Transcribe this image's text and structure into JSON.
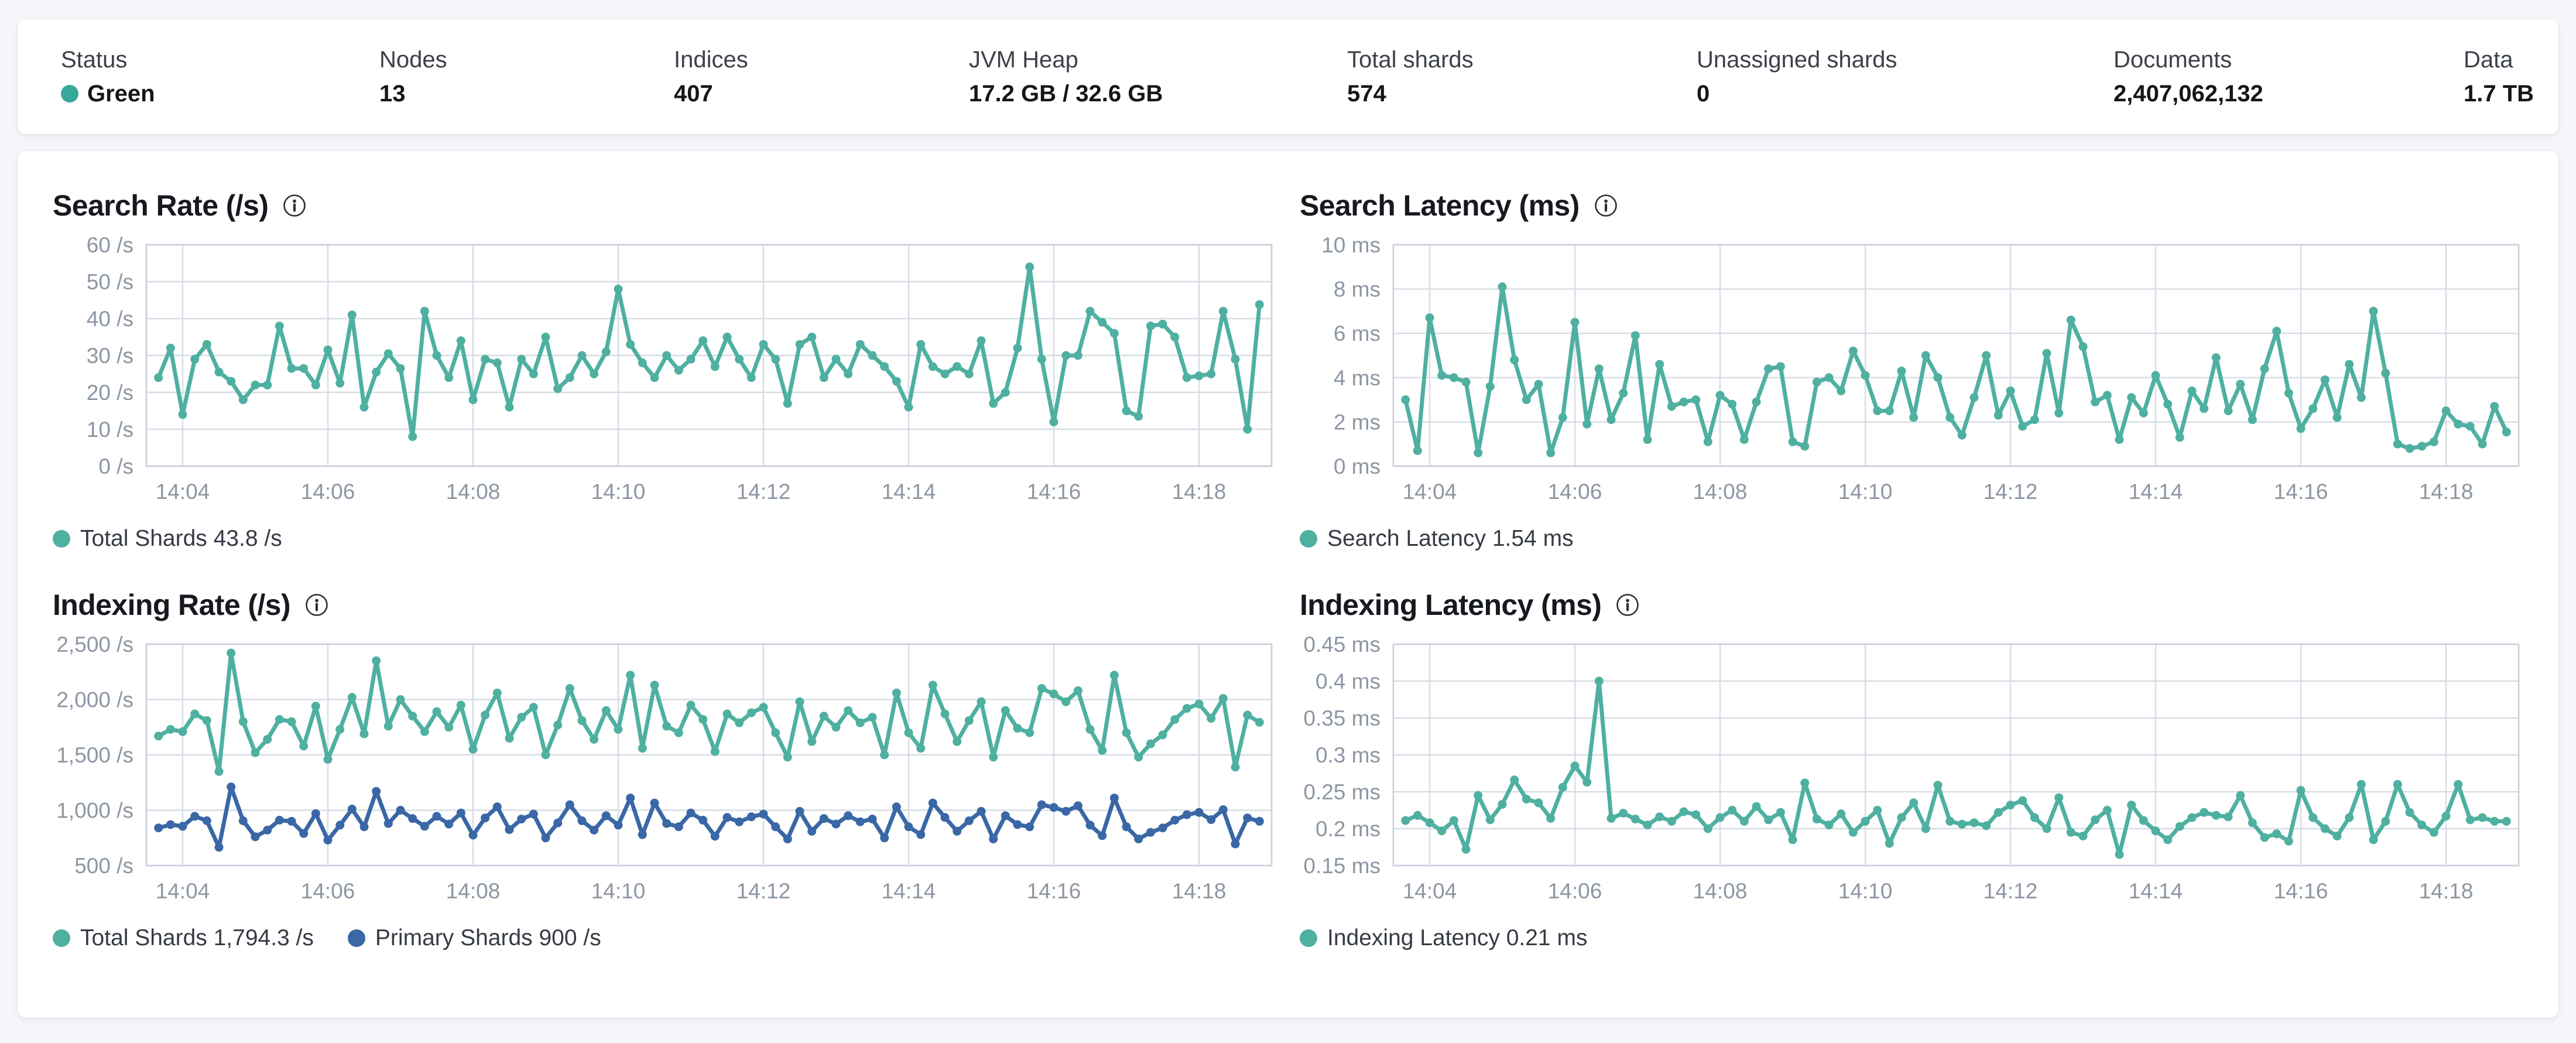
{
  "colors": {
    "teal": "#4FB0A1",
    "blue": "#3A67A5",
    "status_green": "#38A79B",
    "grid": "#d7dde6",
    "plot_border": "#c9d0db",
    "axis_text": "#8c96a3"
  },
  "summary_bar": {
    "stats": [
      {
        "label": "Status",
        "value": "Green"
      },
      {
        "label": "Nodes",
        "value": "13"
      },
      {
        "label": "Indices",
        "value": "407"
      },
      {
        "label": "JVM Heap",
        "value": "17.2 GB / 32.6 GB"
      },
      {
        "label": "Total shards",
        "value": "574"
      },
      {
        "label": "Unassigned shards",
        "value": "0"
      },
      {
        "label": "Documents",
        "value": "2,407,062,132"
      },
      {
        "label": "Data",
        "value": "1.7 TB"
      }
    ]
  },
  "chart_data": [
    {
      "type": "line",
      "title": "Search Rate (/s)",
      "ylim": [
        0,
        60
      ],
      "y_ticks": [
        {
          "v": 0,
          "label": "0 /s"
        },
        {
          "v": 10,
          "label": "10 /s"
        },
        {
          "v": 20,
          "label": "20 /s"
        },
        {
          "v": 30,
          "label": "30 /s"
        },
        {
          "v": 40,
          "label": "40 /s"
        },
        {
          "v": 50,
          "label": "50 /s"
        },
        {
          "v": 60,
          "label": "60 /s"
        }
      ],
      "x_tick_labels": [
        "14:04",
        "14:06",
        "14:08",
        "14:10",
        "14:12",
        "14:14",
        "14:16",
        "14:18"
      ],
      "x_tick_indices": [
        2,
        14,
        26,
        38,
        50,
        62,
        74,
        86
      ],
      "legend": [
        {
          "label": "Total Shards 43.8 /s",
          "color": "teal"
        }
      ],
      "series": [
        {
          "name": "Total Shards",
          "color": "teal",
          "values": [
            24,
            32,
            14,
            29,
            33,
            25.5,
            23,
            18,
            22,
            22,
            38,
            26.5,
            26.5,
            22,
            31.5,
            22.5,
            41,
            16,
            25.5,
            30.5,
            26.5,
            8,
            42,
            30,
            24,
            34,
            18,
            29,
            28,
            16,
            29,
            25,
            35,
            21,
            24,
            30,
            25,
            31,
            48,
            33,
            28,
            24,
            30,
            26,
            29,
            34,
            27,
            35,
            29,
            24,
            33,
            29,
            17,
            33,
            35,
            24,
            29,
            25,
            33,
            30,
            27,
            23,
            16,
            33,
            27,
            25,
            27,
            25,
            34,
            17,
            20,
            32,
            54,
            29,
            12,
            30,
            30,
            42,
            39,
            36,
            15,
            13.5,
            38,
            38.5,
            35,
            24,
            24.5,
            25,
            42,
            29,
            10,
            43.8
          ]
        }
      ]
    },
    {
      "type": "line",
      "title": "Search Latency (ms)",
      "ylim": [
        0,
        10
      ],
      "y_ticks": [
        {
          "v": 0,
          "label": "0 ms"
        },
        {
          "v": 2,
          "label": "2 ms"
        },
        {
          "v": 4,
          "label": "4 ms"
        },
        {
          "v": 6,
          "label": "6 ms"
        },
        {
          "v": 8,
          "label": "8 ms"
        },
        {
          "v": 10,
          "label": "10 ms"
        }
      ],
      "x_tick_labels": [
        "14:04",
        "14:06",
        "14:08",
        "14:10",
        "14:12",
        "14:14",
        "14:16",
        "14:18"
      ],
      "x_tick_indices": [
        2,
        14,
        26,
        38,
        50,
        62,
        74,
        86
      ],
      "legend": [
        {
          "label": "Search Latency 1.54 ms",
          "color": "teal"
        }
      ],
      "series": [
        {
          "name": "Search Latency",
          "color": "teal",
          "values": [
            3,
            0.7,
            6.7,
            4.1,
            4,
            3.8,
            0.6,
            3.6,
            8.1,
            4.8,
            3,
            3.7,
            0.6,
            2.2,
            6.5,
            1.9,
            4.4,
            2.1,
            3.3,
            5.9,
            1.2,
            4.6,
            2.7,
            2.9,
            3,
            1.1,
            3.2,
            2.8,
            1.2,
            2.9,
            4.4,
            4.5,
            1.1,
            0.9,
            3.8,
            4,
            3.4,
            5.2,
            4.1,
            2.5,
            2.5,
            4.3,
            2.2,
            5,
            4,
            2.2,
            1.4,
            3.1,
            5,
            2.3,
            3.4,
            1.8,
            2.1,
            5.1,
            2.4,
            6.6,
            5.4,
            2.9,
            3.2,
            1.2,
            3.1,
            2.4,
            4.1,
            2.8,
            1.3,
            3.4,
            2.6,
            4.9,
            2.5,
            3.7,
            2.1,
            4.4,
            6.1,
            3.3,
            1.7,
            2.6,
            3.9,
            2.2,
            4.6,
            3.1,
            7,
            4.2,
            1,
            0.8,
            0.9,
            1.1,
            2.5,
            1.9,
            1.8,
            1,
            2.7,
            1.54
          ]
        }
      ]
    },
    {
      "type": "line",
      "title": "Indexing Rate (/s)",
      "ylim": [
        500,
        2500
      ],
      "y_ticks": [
        {
          "v": 500,
          "label": "500 /s"
        },
        {
          "v": 1000,
          "label": "1,000 /s"
        },
        {
          "v": 1500,
          "label": "1,500 /s"
        },
        {
          "v": 2000,
          "label": "2,000 /s"
        },
        {
          "v": 2500,
          "label": "2,500 /s"
        }
      ],
      "x_tick_labels": [
        "14:04",
        "14:06",
        "14:08",
        "14:10",
        "14:12",
        "14:14",
        "14:16",
        "14:18"
      ],
      "x_tick_indices": [
        2,
        14,
        26,
        38,
        50,
        62,
        74,
        86
      ],
      "legend": [
        {
          "label": "Total Shards 1,794.3 /s",
          "color": "teal"
        },
        {
          "label": "Primary Shards 900 /s",
          "color": "blue"
        }
      ],
      "series": [
        {
          "name": "Total Shards",
          "color": "teal",
          "values": [
            1670,
            1730,
            1710,
            1870,
            1810,
            1350,
            2420,
            1800,
            1520,
            1640,
            1820,
            1800,
            1580,
            1940,
            1460,
            1730,
            2020,
            1690,
            2350,
            1760,
            2000,
            1850,
            1710,
            1890,
            1750,
            1950,
            1550,
            1860,
            2060,
            1650,
            1840,
            1930,
            1500,
            1770,
            2100,
            1810,
            1640,
            1900,
            1730,
            2220,
            1560,
            2130,
            1760,
            1700,
            1950,
            1820,
            1530,
            1870,
            1790,
            1880,
            1930,
            1700,
            1480,
            1980,
            1620,
            1850,
            1750,
            1900,
            1790,
            1840,
            1500,
            2060,
            1700,
            1560,
            2130,
            1870,
            1620,
            1810,
            1980,
            1480,
            1900,
            1740,
            1700,
            2100,
            2050,
            1980,
            2080,
            1730,
            1540,
            2220,
            1700,
            1480,
            1600,
            1680,
            1820,
            1920,
            1960,
            1830,
            2010,
            1390,
            1860,
            1794.3
          ]
        },
        {
          "name": "Primary Shards",
          "color": "blue",
          "values": [
            840,
            870,
            855,
            945,
            905,
            665,
            1210,
            905,
            760,
            820,
            910,
            900,
            790,
            970,
            730,
            865,
            1010,
            850,
            1170,
            880,
            1000,
            925,
            855,
            945,
            875,
            975,
            775,
            930,
            1030,
            825,
            920,
            965,
            750,
            885,
            1050,
            905,
            820,
            950,
            865,
            1110,
            780,
            1065,
            880,
            850,
            975,
            910,
            765,
            935,
            895,
            940,
            965,
            850,
            740,
            990,
            810,
            925,
            875,
            950,
            895,
            920,
            750,
            1030,
            850,
            780,
            1065,
            935,
            810,
            905,
            990,
            740,
            950,
            870,
            850,
            1050,
            1025,
            990,
            1040,
            865,
            770,
            1110,
            850,
            740,
            800,
            840,
            910,
            960,
            980,
            915,
            1005,
            695,
            930,
            900
          ]
        }
      ]
    },
    {
      "type": "line",
      "title": "Indexing Latency (ms)",
      "ylim": [
        0.15,
        0.45
      ],
      "y_ticks": [
        {
          "v": 0.15,
          "label": "0.15 ms"
        },
        {
          "v": 0.2,
          "label": "0.2 ms"
        },
        {
          "v": 0.25,
          "label": "0.25 ms"
        },
        {
          "v": 0.3,
          "label": "0.3 ms"
        },
        {
          "v": 0.35,
          "label": "0.35 ms"
        },
        {
          "v": 0.4,
          "label": "0.4 ms"
        },
        {
          "v": 0.45,
          "label": "0.45 ms"
        }
      ],
      "x_tick_labels": [
        "14:04",
        "14:06",
        "14:08",
        "14:10",
        "14:12",
        "14:14",
        "14:16",
        "14:18"
      ],
      "x_tick_indices": [
        2,
        14,
        26,
        38,
        50,
        62,
        74,
        86
      ],
      "legend": [
        {
          "label": "Indexing Latency 0.21 ms",
          "color": "teal"
        }
      ],
      "series": [
        {
          "name": "Indexing Latency",
          "color": "teal",
          "values": [
            0.211,
            0.218,
            0.208,
            0.197,
            0.211,
            0.172,
            0.245,
            0.212,
            0.233,
            0.266,
            0.24,
            0.235,
            0.214,
            0.256,
            0.285,
            0.263,
            0.4,
            0.214,
            0.221,
            0.213,
            0.205,
            0.216,
            0.21,
            0.223,
            0.219,
            0.2,
            0.215,
            0.225,
            0.21,
            0.23,
            0.212,
            0.222,
            0.185,
            0.262,
            0.213,
            0.205,
            0.22,
            0.195,
            0.21,
            0.225,
            0.18,
            0.215,
            0.235,
            0.2,
            0.259,
            0.21,
            0.206,
            0.208,
            0.204,
            0.222,
            0.232,
            0.238,
            0.215,
            0.2,
            0.242,
            0.195,
            0.19,
            0.212,
            0.225,
            0.165,
            0.232,
            0.211,
            0.197,
            0.185,
            0.203,
            0.215,
            0.222,
            0.218,
            0.216,
            0.245,
            0.208,
            0.188,
            0.193,
            0.183,
            0.252,
            0.215,
            0.2,
            0.19,
            0.215,
            0.26,
            0.185,
            0.21,
            0.26,
            0.222,
            0.205,
            0.195,
            0.217,
            0.26,
            0.212,
            0.215,
            0.21,
            0.21
          ]
        }
      ]
    }
  ]
}
